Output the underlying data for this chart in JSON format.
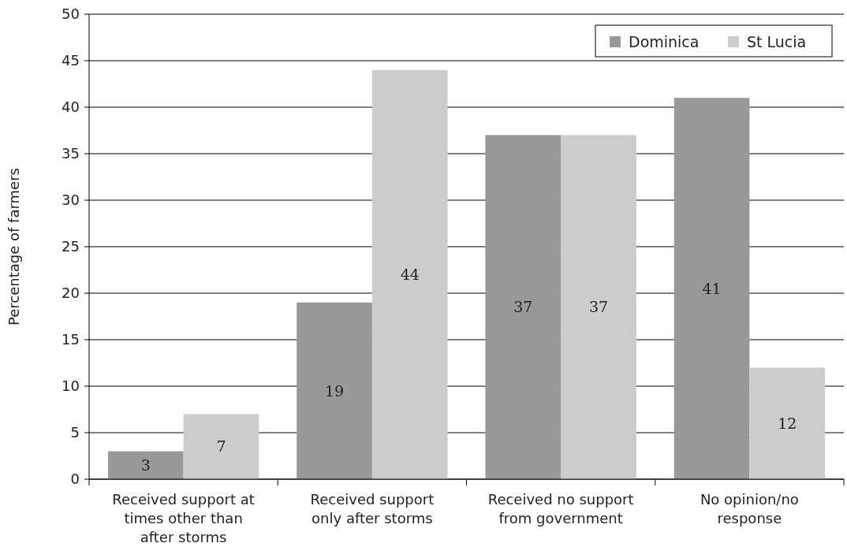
{
  "chart_data": {
    "type": "bar",
    "ylabel": "Percentage of farmers",
    "categories": [
      "Received support at times other than after storms",
      "Received support only after storms",
      "Received no support from government",
      "No opinion/no response"
    ],
    "series": [
      {
        "name": "Dominica",
        "color": "#999999",
        "values": [
          3,
          19,
          37,
          41
        ]
      },
      {
        "name": "St Lucia",
        "color": "#cccccc",
        "values": [
          7,
          44,
          37,
          12
        ]
      }
    ],
    "ylim": [
      0,
      50
    ],
    "yticks": [
      0,
      5,
      10,
      15,
      20,
      25,
      30,
      35,
      40,
      45,
      50
    ],
    "grid": "y",
    "legend": "top right",
    "data_labels": true
  }
}
